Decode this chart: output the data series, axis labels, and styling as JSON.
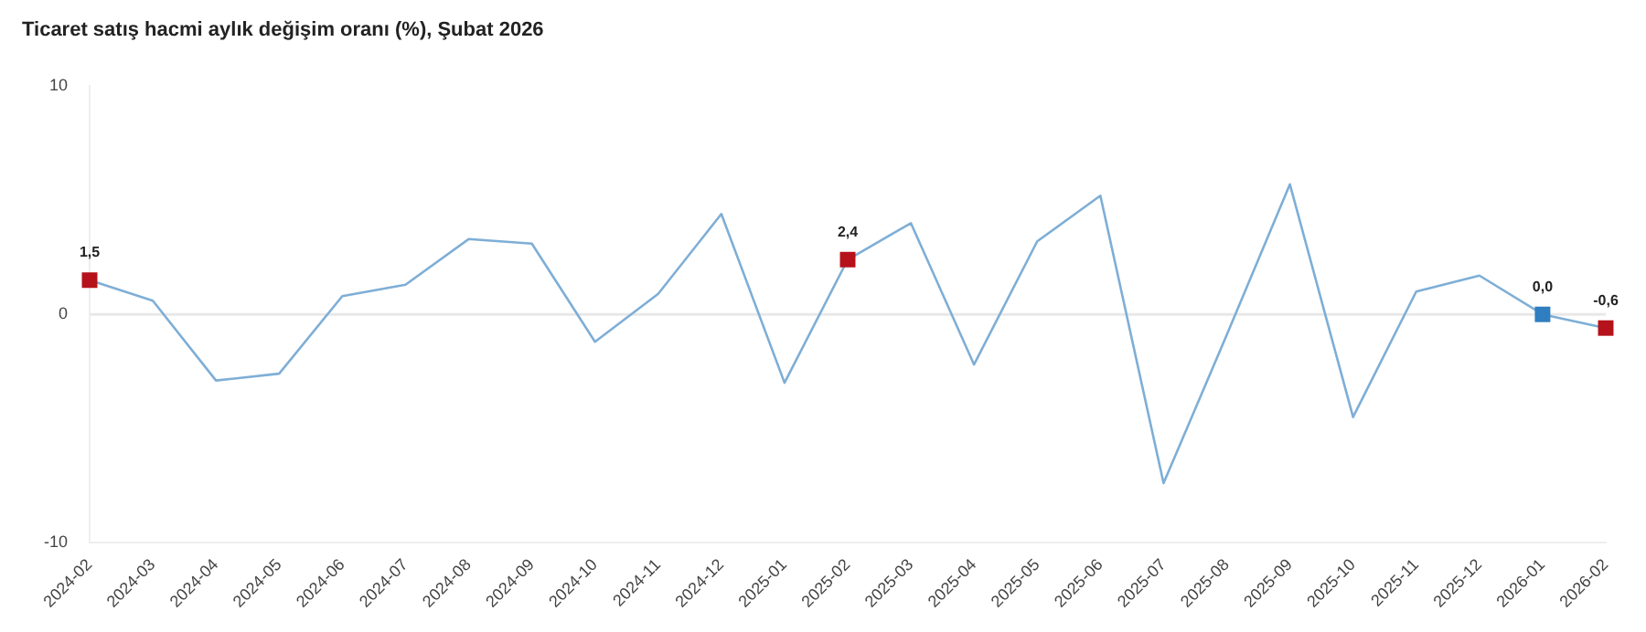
{
  "chart_data": {
    "type": "line",
    "title": "Ticaret satış hacmi aylık değişim oranı (%), Şubat 2026",
    "categories": [
      "2024-02",
      "2024-03",
      "2024-04",
      "2024-05",
      "2024-06",
      "2024-07",
      "2024-08",
      "2024-09",
      "2024-10",
      "2024-11",
      "2024-12",
      "2025-01",
      "2025-02",
      "2025-03",
      "2025-04",
      "2025-05",
      "2025-06",
      "2025-07",
      "2025-08",
      "2025-09",
      "2025-10",
      "2025-11",
      "2025-12",
      "2026-01",
      "2026-02"
    ],
    "series": [
      {
        "color": "#7eaed6",
        "marker": "none",
        "values": [
          1.5,
          0.6,
          -2.9,
          -2.6,
          0.8,
          1.3,
          3.3,
          3.1,
          -1.2,
          0.9,
          4.4,
          -3.0,
          2.4,
          4.0,
          -2.2,
          3.2,
          5.2,
          -7.4,
          -0.9,
          5.7,
          -4.5,
          1.0,
          1.7,
          0.0,
          -0.6
        ],
        "value_labels": [
          "1,5",
          null,
          null,
          null,
          null,
          null,
          null,
          null,
          null,
          null,
          null,
          null,
          "2,4",
          null,
          null,
          null,
          null,
          null,
          null,
          null,
          null,
          null,
          null,
          "0,0",
          "-0,6"
        ]
      },
      {
        "type": "scatter",
        "marker": "square",
        "values": [
          1.5,
          null,
          null,
          null,
          null,
          null,
          null,
          null,
          null,
          null,
          null,
          null,
          2.4,
          null,
          null,
          null,
          null,
          null,
          null,
          null,
          null,
          null,
          null,
          0.0,
          -0.6
        ],
        "colors": [
          "#b5121b",
          null,
          null,
          null,
          null,
          null,
          null,
          null,
          null,
          null,
          null,
          null,
          "#b5121b",
          null,
          null,
          null,
          null,
          null,
          null,
          null,
          null,
          null,
          null,
          "#2f7ebf",
          "#b5121b"
        ]
      }
    ],
    "ylim": [
      -10,
      10
    ],
    "yticks": [
      -10,
      0,
      10
    ],
    "grid": false,
    "legend": false,
    "ref_lines": [
      {
        "axis": "y",
        "value": 0,
        "color": "#e8e8e8"
      }
    ]
  }
}
